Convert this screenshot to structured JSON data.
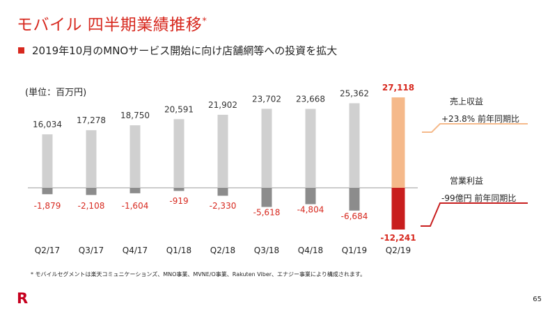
{
  "title": "モバイル 四半期業績推移",
  "title_mark": "*",
  "subtitle": "2019年10月のMNOサービス開始に向け店舗網等への投資を拡大",
  "unit_label": "(単位：百万円)",
  "legend": {
    "revenue_title": "売上収益",
    "revenue_change": "+23.8% 前年同期比",
    "profit_title": "営業利益",
    "profit_change": "-99億円 前年同期比"
  },
  "footnote": "* モバイルセグメントは楽天コミュニケーションズ、MNO事業、MVNE/O事業、Rakuten Viber、エナジー事業により構成されます。",
  "logo_text": "R",
  "page_number": "65",
  "colors": {
    "revenue_bar": "#d0d0d0",
    "profit_bar": "#8c8c8c",
    "highlight_revenue_bar": "#f5b98a",
    "highlight_profit_bar": "#c81e1e",
    "negative_label": "#d7281e",
    "accent": "#d7281e"
  },
  "chart_data": {
    "type": "bar",
    "title": "モバイル 四半期業績推移",
    "categories": [
      "Q2/17",
      "Q3/17",
      "Q4/17",
      "Q1/18",
      "Q2/18",
      "Q3/18",
      "Q4/18",
      "Q1/19",
      "Q2/19"
    ],
    "series": [
      {
        "name": "売上収益",
        "values": [
          16034,
          17278,
          18750,
          20591,
          21902,
          23702,
          23668,
          25362,
          27118
        ]
      },
      {
        "name": "営業利益",
        "values": [
          -1879,
          -2108,
          -1604,
          -919,
          -2330,
          -5618,
          -4804,
          -6684,
          -12241
        ]
      }
    ],
    "value_labels": {
      "revenue": [
        "16,034",
        "17,278",
        "18,750",
        "20,591",
        "21,902",
        "23,702",
        "23,668",
        "25,362",
        "27,118"
      ],
      "profit": [
        "-1,879",
        "-2,108",
        "-1,604",
        "-919",
        "-2,330",
        "-5,618",
        "-4,804",
        "-6,684",
        "-12,241"
      ]
    },
    "highlight_category": "Q2/19",
    "xlabel": "",
    "ylabel": "百万円",
    "ylim": [
      -13000,
      28000
    ]
  }
}
